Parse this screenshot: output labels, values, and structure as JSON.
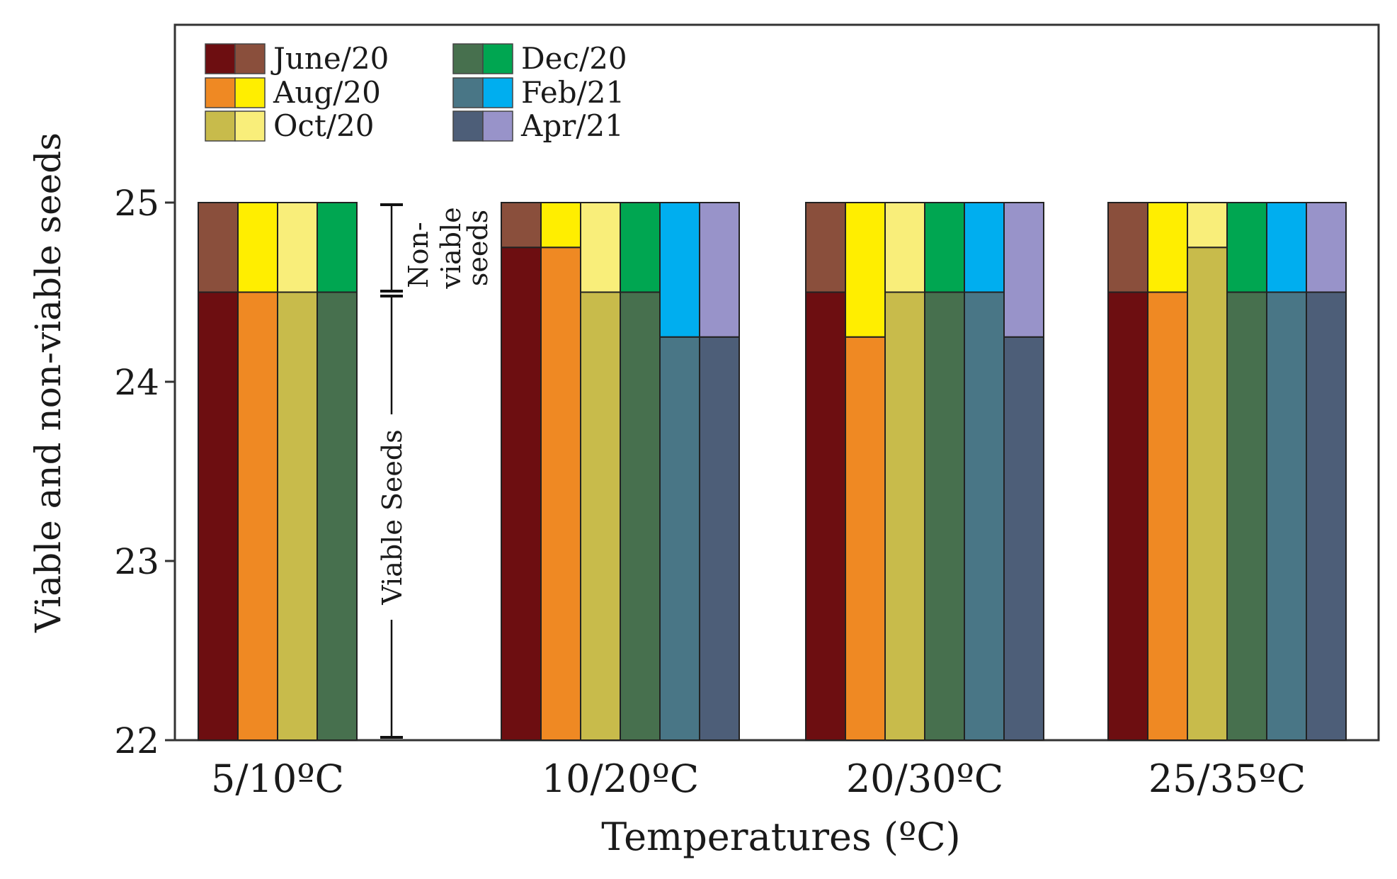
{
  "chart_data": {
    "type": "bar",
    "stacked": true,
    "ylabel": "Viable and non-viable seeds",
    "xlabel": "Temperatures (ºC)",
    "ylim": [
      22,
      26
    ],
    "yticks": [
      22,
      23,
      24,
      25
    ],
    "grid": false,
    "legend_position": "top-left",
    "categories": [
      "5/10ºC",
      "10/20ºC",
      "20/30ºC",
      "25/35ºC"
    ],
    "series": [
      {
        "name": "June/20",
        "viable_color": "#6d0e11",
        "nonviable_color": "#8a4f3c",
        "viable": [
          24.5,
          24.75,
          24.5,
          24.5
        ],
        "nonviable": [
          0.5,
          0.25,
          0.5,
          0.5
        ]
      },
      {
        "name": "Aug/20",
        "viable_color": "#ef8923",
        "nonviable_color": "#ffee00",
        "viable": [
          24.5,
          24.75,
          24.25,
          24.5
        ],
        "nonviable": [
          0.5,
          0.25,
          0.75,
          0.5
        ]
      },
      {
        "name": "Oct/20",
        "viable_color": "#c8bb4b",
        "nonviable_color": "#f9ee7a",
        "viable": [
          24.5,
          24.5,
          24.5,
          24.75
        ],
        "nonviable": [
          0.5,
          0.5,
          0.5,
          0.25
        ]
      },
      {
        "name": "Dec/20",
        "viable_color": "#47704e",
        "nonviable_color": "#00a651",
        "viable": [
          24.5,
          24.5,
          24.5,
          24.5
        ],
        "nonviable": [
          0.5,
          0.5,
          0.5,
          0.5
        ]
      },
      {
        "name": "Feb/21",
        "viable_color": "#497686",
        "nonviable_color": "#00aeef",
        "viable": [
          null,
          24.25,
          24.5,
          24.5
        ],
        "nonviable": [
          null,
          0.75,
          0.5,
          0.5
        ]
      },
      {
        "name": "Apr/21",
        "viable_color": "#4d5e78",
        "nonviable_color": "#9893c9",
        "viable": [
          null,
          24.25,
          24.25,
          24.5
        ],
        "nonviable": [
          null,
          0.75,
          0.75,
          0.5
        ]
      }
    ],
    "annotations": {
      "viable": "Viable Seeds",
      "nonviable_line1": "Non-",
      "nonviable_line2": "viable",
      "nonviable_line3": "seeds"
    }
  }
}
